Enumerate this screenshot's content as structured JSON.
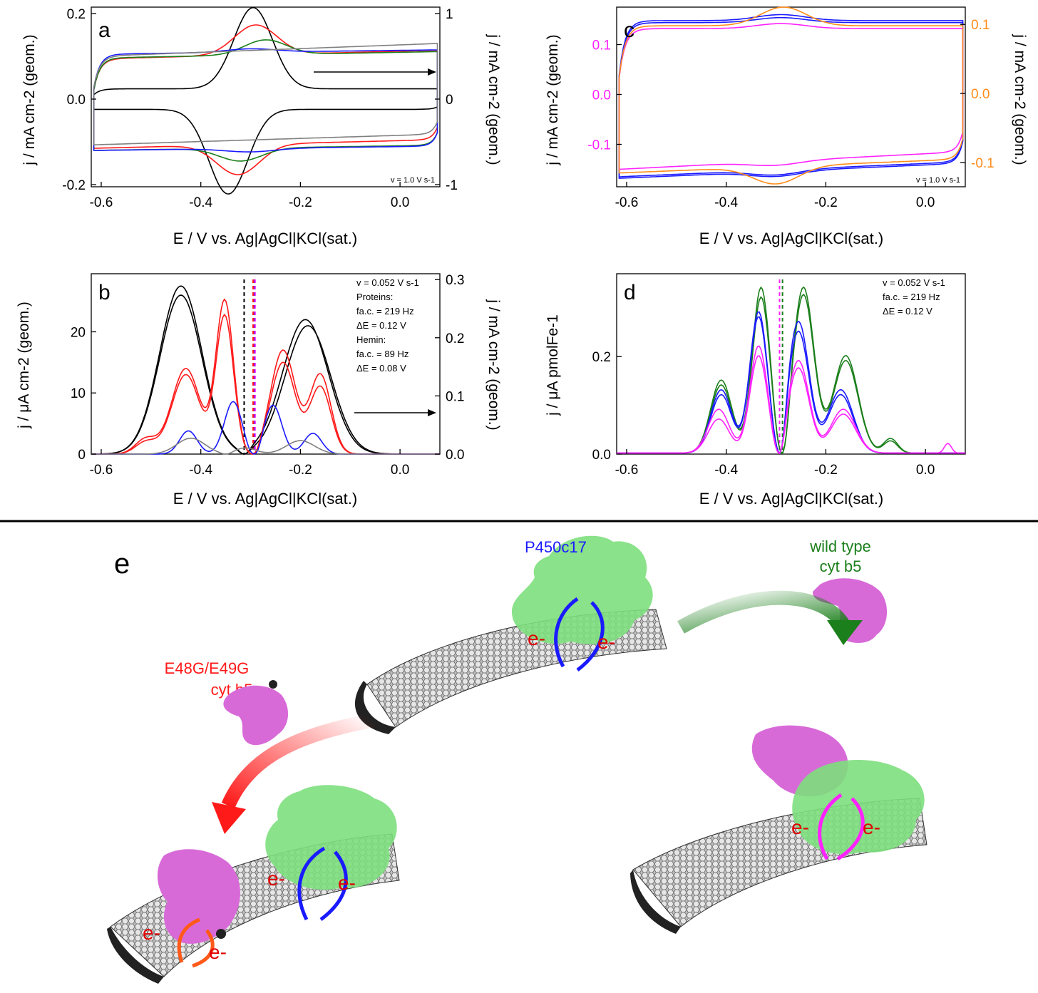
{
  "colors": {
    "black": "#000000",
    "red": "#ff1a1a",
    "green": "#1b7f1b",
    "blue": "#1a1aff",
    "gray": "#808080",
    "magenta": "#ff22ff",
    "orange": "#ff8c1a",
    "protein_green": "#7ddf7d",
    "protein_magenta": "#d86ad8",
    "tube": "#5a5a5a"
  },
  "common": {
    "xaxis_label": "E / V vs. Ag|AgCl|KCl(sat.)",
    "xticks": [
      "-0.6",
      "-0.4",
      "-0.2",
      "0.0"
    ]
  },
  "panels": {
    "a": {
      "label": "a",
      "ylabel_left": "j / mA cm-2 (geom.)",
      "ylabel_right": "j / mA cm-2 (geom.)",
      "yticks_left": [
        "-0.2",
        "0.0",
        "0.2"
      ],
      "yticks_right": [
        "-1",
        "0",
        "1"
      ],
      "annotation": "v = 1.0 V s-1"
    },
    "b": {
      "label": "b",
      "ylabel_left": "j / μA cm-2 (geom.)",
      "ylabel_right": "j / mA cm-2 (geom.)",
      "yticks_left": [
        "0",
        "10",
        "20"
      ],
      "yticks_right": [
        "0.0",
        "0.1",
        "0.2",
        "0.3"
      ],
      "annotation_lines": [
        "v = 0.052 V s-1",
        "Proteins:",
        "fa.c. = 219 Hz",
        "ΔE = 0.12 V",
        "Hemin:",
        "fa.c. = 89 Hz",
        "ΔE = 0.08 V"
      ]
    },
    "c": {
      "label": "c",
      "ylabel_left": "j / mA cm-2 (geom.)",
      "ylabel_right": "j / mA cm-2 (geom.)",
      "yticks_left": [
        "-0.1",
        "0.0",
        "0.1"
      ],
      "yticks_right": [
        "-0.1",
        "0.0",
        "0.1"
      ],
      "annotation": "v = 1.0 V s-1"
    },
    "d": {
      "label": "d",
      "ylabel_left": "j / μA pmolFe-1",
      "yticks_left": [
        "0.0",
        "0.2"
      ],
      "annotation_lines": [
        "v = 0.052 V s-1",
        "fa.c. = 219 Hz",
        "ΔE = 0.12 V"
      ]
    }
  },
  "scheme": {
    "label": "e",
    "p450_label": "P450c17",
    "wt_label_1": "wild type",
    "wt_label_2": "cyt b5",
    "mut_label_1": "E48G/E49G",
    "mut_label_2": "cyt b5",
    "electron": "e-"
  },
  "chart_data": [
    {
      "panel": "a",
      "type": "line",
      "xlabel": "E / V vs. Ag|AgCl|KCl(sat.)",
      "ylabel": "j / mA cm-2 (geom.)",
      "xlim": [
        -0.62,
        0.08
      ],
      "ylim": [
        -0.205,
        0.215
      ],
      "ylim_right": [
        -1.025,
        1.075
      ],
      "series": [
        {
          "color": "black",
          "axis": "right",
          "forward": {
            "base": 0.0,
            "slope": 0.0,
            "peaks": [
              [
                -0.295,
                0.95,
                0.055
              ]
            ]
          },
          "reverse": {
            "base": 0.0,
            "slope": 0.0,
            "peaks": [
              [
                -0.345,
                -0.99,
                0.055
              ]
            ]
          },
          "offset": 0.12
        },
        {
          "color": "red",
          "axis": "left",
          "forward": {
            "base": 0.094,
            "slope": 0.02,
            "peaks": [
              [
                -0.29,
                0.07,
                0.06
              ]
            ]
          },
          "reverse": {
            "base": -0.115,
            "slope": 0.02,
            "peaks": [
              [
                -0.325,
                -0.07,
                0.06
              ]
            ]
          }
        },
        {
          "color": "green",
          "axis": "left",
          "forward": {
            "base": 0.096,
            "slope": 0.015,
            "peaks": [
              [
                -0.27,
                0.035,
                0.06
              ]
            ]
          },
          "reverse": {
            "base": -0.12,
            "slope": 0.012,
            "peaks": [
              [
                -0.32,
                -0.03,
                0.06
              ]
            ]
          }
        },
        {
          "color": "blue",
          "axis": "left",
          "forward": {
            "base": 0.105,
            "slope": 0.01,
            "peaks": [
              [
                -0.3,
                0.008,
                0.07
              ]
            ]
          },
          "reverse": {
            "base": -0.12,
            "slope": 0.01,
            "peaks": [
              [
                -0.3,
                -0.008,
                0.07
              ]
            ]
          }
        },
        {
          "color": "gray",
          "axis": "left",
          "forward": {
            "base": 0.1,
            "slope": 0.03,
            "peaks": []
          },
          "reverse": {
            "base": -0.107,
            "slope": 0.025,
            "peaks": []
          }
        }
      ]
    },
    {
      "panel": "b",
      "type": "line",
      "xlabel": "E / V vs. Ag|AgCl|KCl(sat.)",
      "ylabel": "j / μA cm-2 (geom.)",
      "xlim": [
        -0.62,
        0.08
      ],
      "ylim": [
        0,
        29.5
      ],
      "ylim_right": [
        0,
        0.31
      ],
      "dashed_lines": [
        {
          "x": -0.313,
          "color": "black"
        },
        {
          "x": -0.293,
          "color": "blue"
        },
        {
          "x": -0.295,
          "color": "red"
        },
        {
          "x": -0.291,
          "color": "magenta"
        }
      ],
      "series": [
        {
          "color": "black",
          "axis": "left",
          "peaks": [
            [
              -0.44,
              27.5,
              0.06
            ],
            [
              -0.19,
              22.0,
              0.065
            ]
          ],
          "zero": -0.313
        },
        {
          "color": "black",
          "axis": "left",
          "peaks": [
            [
              -0.44,
              26.0,
              0.06
            ],
            [
              -0.185,
              21.0,
              0.065
            ]
          ],
          "zero": -0.313
        },
        {
          "color": "red",
          "axis": "left",
          "peaks": [
            [
              -0.43,
              14.0,
              0.04
            ],
            [
              -0.352,
              25.0,
              0.025
            ],
            [
              -0.235,
              17.0,
              0.035
            ],
            [
              -0.16,
              13.0,
              0.03
            ],
            [
              -0.51,
              2.5,
              0.03
            ]
          ],
          "zero": -0.296
        },
        {
          "color": "red",
          "axis": "left",
          "peaks": [
            [
              -0.43,
              13.0,
              0.04
            ],
            [
              -0.352,
              22.5,
              0.025
            ],
            [
              -0.235,
              15.0,
              0.035
            ],
            [
              -0.16,
              11.0,
              0.03
            ],
            [
              -0.51,
              2.0,
              0.03
            ]
          ],
          "zero": -0.296
        },
        {
          "color": "blue",
          "axis": "left",
          "peaks": [
            [
              -0.425,
              3.8,
              0.025
            ],
            [
              -0.335,
              8.6,
              0.025
            ],
            [
              -0.255,
              8.0,
              0.025
            ],
            [
              -0.175,
              3.4,
              0.025
            ]
          ],
          "zero": -0.293
        },
        {
          "color": "gray",
          "axis": "left",
          "peaks": [
            [
              -0.42,
              2.6,
              0.04
            ],
            [
              -0.31,
              1.0,
              0.03
            ],
            [
              -0.2,
              2.2,
              0.04
            ]
          ],
          "zero": -0.35
        }
      ]
    },
    {
      "panel": "c",
      "type": "line",
      "xlabel": "E / V vs. Ag|AgCl|KCl(sat.)",
      "ylabel": "j / mA cm-2 (geom.)",
      "xlim": [
        -0.62,
        0.08
      ],
      "ylim": [
        -0.185,
        0.175
      ],
      "ylim_right": [
        -0.135,
        0.125
      ],
      "series": [
        {
          "color": "blue",
          "axis": "left",
          "forward": {
            "base": 0.148,
            "slope": 0.0,
            "peaks": [
              [
                -0.29,
                0.012,
                0.07
              ]
            ]
          },
          "reverse": {
            "base": -0.165,
            "slope": 0.03,
            "peaks": [
              [
                -0.3,
                -0.01,
                0.07
              ]
            ]
          }
        },
        {
          "color": "blue",
          "axis": "left",
          "forward": {
            "base": 0.144,
            "slope": 0.0,
            "peaks": [
              [
                -0.29,
                0.01,
                0.07
              ]
            ]
          },
          "reverse": {
            "base": -0.168,
            "slope": 0.03,
            "peaks": [
              [
                -0.3,
                -0.01,
                0.07
              ]
            ]
          }
        },
        {
          "color": "magenta",
          "axis": "left",
          "forward": {
            "base": 0.132,
            "slope": 0.0,
            "peaks": [
              [
                -0.29,
                0.01,
                0.07
              ]
            ]
          },
          "reverse": {
            "base": -0.15,
            "slope": 0.035,
            "peaks": [
              [
                -0.3,
                -0.008,
                0.07
              ]
            ]
          }
        },
        {
          "color": "orange",
          "axis": "right",
          "forward": {
            "base": 0.098,
            "slope": 0.0,
            "peaks": [
              [
                -0.285,
                0.027,
                0.065
              ]
            ]
          },
          "reverse": {
            "base": -0.115,
            "slope": 0.02,
            "peaks": [
              [
                -0.3,
                -0.025,
                0.065
              ]
            ]
          }
        }
      ]
    },
    {
      "panel": "d",
      "type": "line",
      "xlabel": "E / V vs. Ag|AgCl|KCl(sat.)",
      "ylabel": "j / μA pmolFe-1",
      "xlim": [
        -0.62,
        0.08
      ],
      "ylim": [
        0,
        0.37
      ],
      "dashed_lines": [
        {
          "x": -0.293,
          "color": "magenta"
        },
        {
          "x": -0.287,
          "color": "green"
        }
      ],
      "series": [
        {
          "color": "green",
          "peaks": [
            [
              -0.41,
              0.15,
              0.03
            ],
            [
              -0.33,
              0.34,
              0.025
            ],
            [
              -0.245,
              0.34,
              0.03
            ],
            [
              -0.16,
              0.2,
              0.035
            ],
            [
              -0.07,
              0.03,
              0.02
            ]
          ],
          "zero": -0.288
        },
        {
          "color": "green",
          "peaks": [
            [
              -0.41,
              0.14,
              0.03
            ],
            [
              -0.33,
              0.32,
              0.025
            ],
            [
              -0.245,
              0.325,
              0.03
            ],
            [
              -0.16,
              0.19,
              0.035
            ],
            [
              -0.07,
              0.025,
              0.02
            ]
          ],
          "zero": -0.288
        },
        {
          "color": "blue",
          "peaks": [
            [
              -0.41,
              0.13,
              0.03
            ],
            [
              -0.335,
              0.29,
              0.025
            ],
            [
              -0.255,
              0.27,
              0.03
            ],
            [
              -0.17,
              0.13,
              0.035
            ]
          ],
          "zero": -0.293
        },
        {
          "color": "blue",
          "peaks": [
            [
              -0.41,
              0.12,
              0.03
            ],
            [
              -0.335,
              0.28,
              0.025
            ],
            [
              -0.255,
              0.25,
              0.03
            ],
            [
              -0.17,
              0.12,
              0.035
            ]
          ],
          "zero": -0.293
        },
        {
          "color": "magenta",
          "peaks": [
            [
              -0.415,
              0.09,
              0.03
            ],
            [
              -0.335,
              0.22,
              0.025
            ],
            [
              -0.255,
              0.19,
              0.03
            ],
            [
              -0.165,
              0.09,
              0.035
            ],
            [
              0.045,
              0.02,
              0.01
            ]
          ],
          "zero": -0.294
        },
        {
          "color": "magenta",
          "peaks": [
            [
              -0.415,
              0.07,
              0.03
            ],
            [
              -0.335,
              0.2,
              0.025
            ],
            [
              -0.255,
              0.175,
              0.03
            ],
            [
              -0.165,
              0.08,
              0.035
            ]
          ],
          "zero": -0.294
        }
      ]
    }
  ]
}
